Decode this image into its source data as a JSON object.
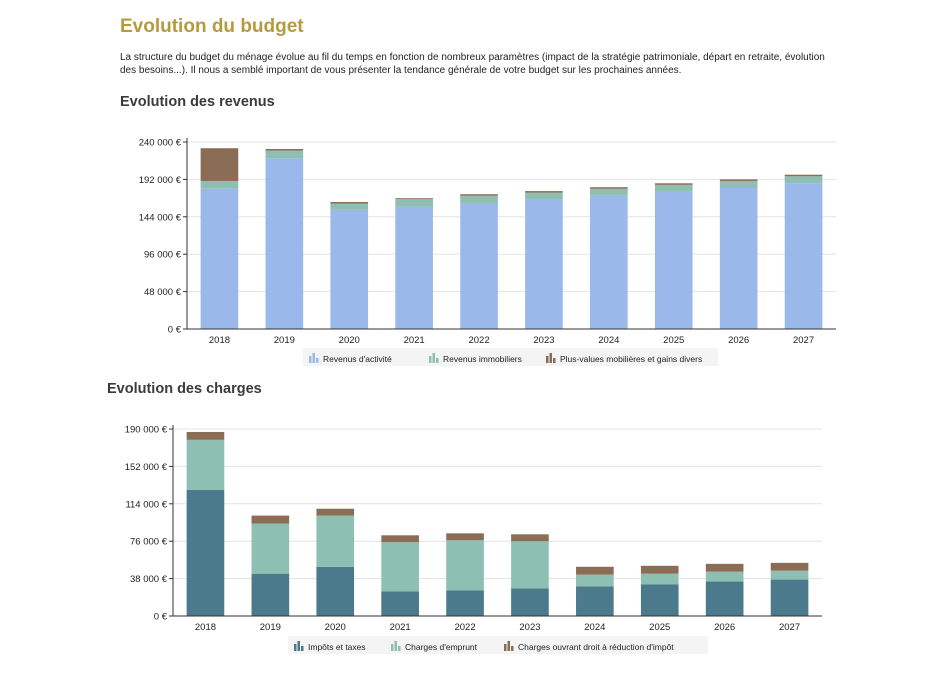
{
  "header": {
    "title": "Evolution du budget",
    "intro": "La structure du budget du ménage évolue au fil du temps en fonction de nombreux paramètres (impact de la stratégie patrimoniale, départ en retraite, évolution des besoins...). Il nous a semblé important de vous présenter la tendance générale de votre budget sur les prochaines années."
  },
  "sections": {
    "revenus_title": "Evolution des revenus",
    "charges_title": "Evolution des charges"
  },
  "chart_data": [
    {
      "type": "bar",
      "stacked": true,
      "title": "Evolution des revenus",
      "categories": [
        "2018",
        "2019",
        "2020",
        "2021",
        "2022",
        "2023",
        "2024",
        "2025",
        "2026",
        "2027"
      ],
      "ylim": [
        0,
        240000
      ],
      "yticks": [
        "0 €",
        "48 000 €",
        "96 000 €",
        "144 000 €",
        "192 000 €",
        "240 000 €"
      ],
      "series": [
        {
          "name": "Revenus d'activité",
          "color": "#9ab9ea",
          "values": [
            180000,
            219000,
            153000,
            157000,
            161000,
            166000,
            171000,
            176000,
            181000,
            187000
          ]
        },
        {
          "name": "Revenus immobiliers",
          "color": "#8dbfb2",
          "values": [
            10000,
            10000,
            8000,
            10000,
            10000,
            9000,
            9000,
            9000,
            9000,
            9000
          ]
        },
        {
          "name": "Plus-values mobilières et gains divers",
          "color": "#8b6d55",
          "values": [
            42000,
            2000,
            2000,
            1000,
            2000,
            2000,
            2000,
            2000,
            2000,
            2000
          ]
        }
      ],
      "legend": "bottom",
      "grid": true
    },
    {
      "type": "bar",
      "stacked": true,
      "title": "Evolution des charges",
      "categories": [
        "2018",
        "2019",
        "2020",
        "2021",
        "2022",
        "2023",
        "2024",
        "2025",
        "2026",
        "2027"
      ],
      "ylim": [
        0,
        190000
      ],
      "yticks": [
        "0 €",
        "38 000 €",
        "76 000 €",
        "114 000 €",
        "152 000 €",
        "190 000 €"
      ],
      "series": [
        {
          "name": "Impôts et taxes",
          "color": "#4a7a8c",
          "values": [
            128000,
            43000,
            50000,
            25000,
            26000,
            28000,
            30000,
            32000,
            35000,
            37000
          ]
        },
        {
          "name": "Charges d'emprunt",
          "color": "#8dbfb2",
          "values": [
            51000,
            51000,
            52000,
            50000,
            51000,
            48000,
            12000,
            11000,
            10000,
            9000
          ]
        },
        {
          "name": "Charges ouvrant droit à réduction d'impôt",
          "color": "#8b6d55",
          "values": [
            8000,
            8000,
            7000,
            7000,
            7000,
            7000,
            8000,
            8000,
            8000,
            8000
          ]
        }
      ],
      "legend": "bottom",
      "grid": true
    }
  ]
}
